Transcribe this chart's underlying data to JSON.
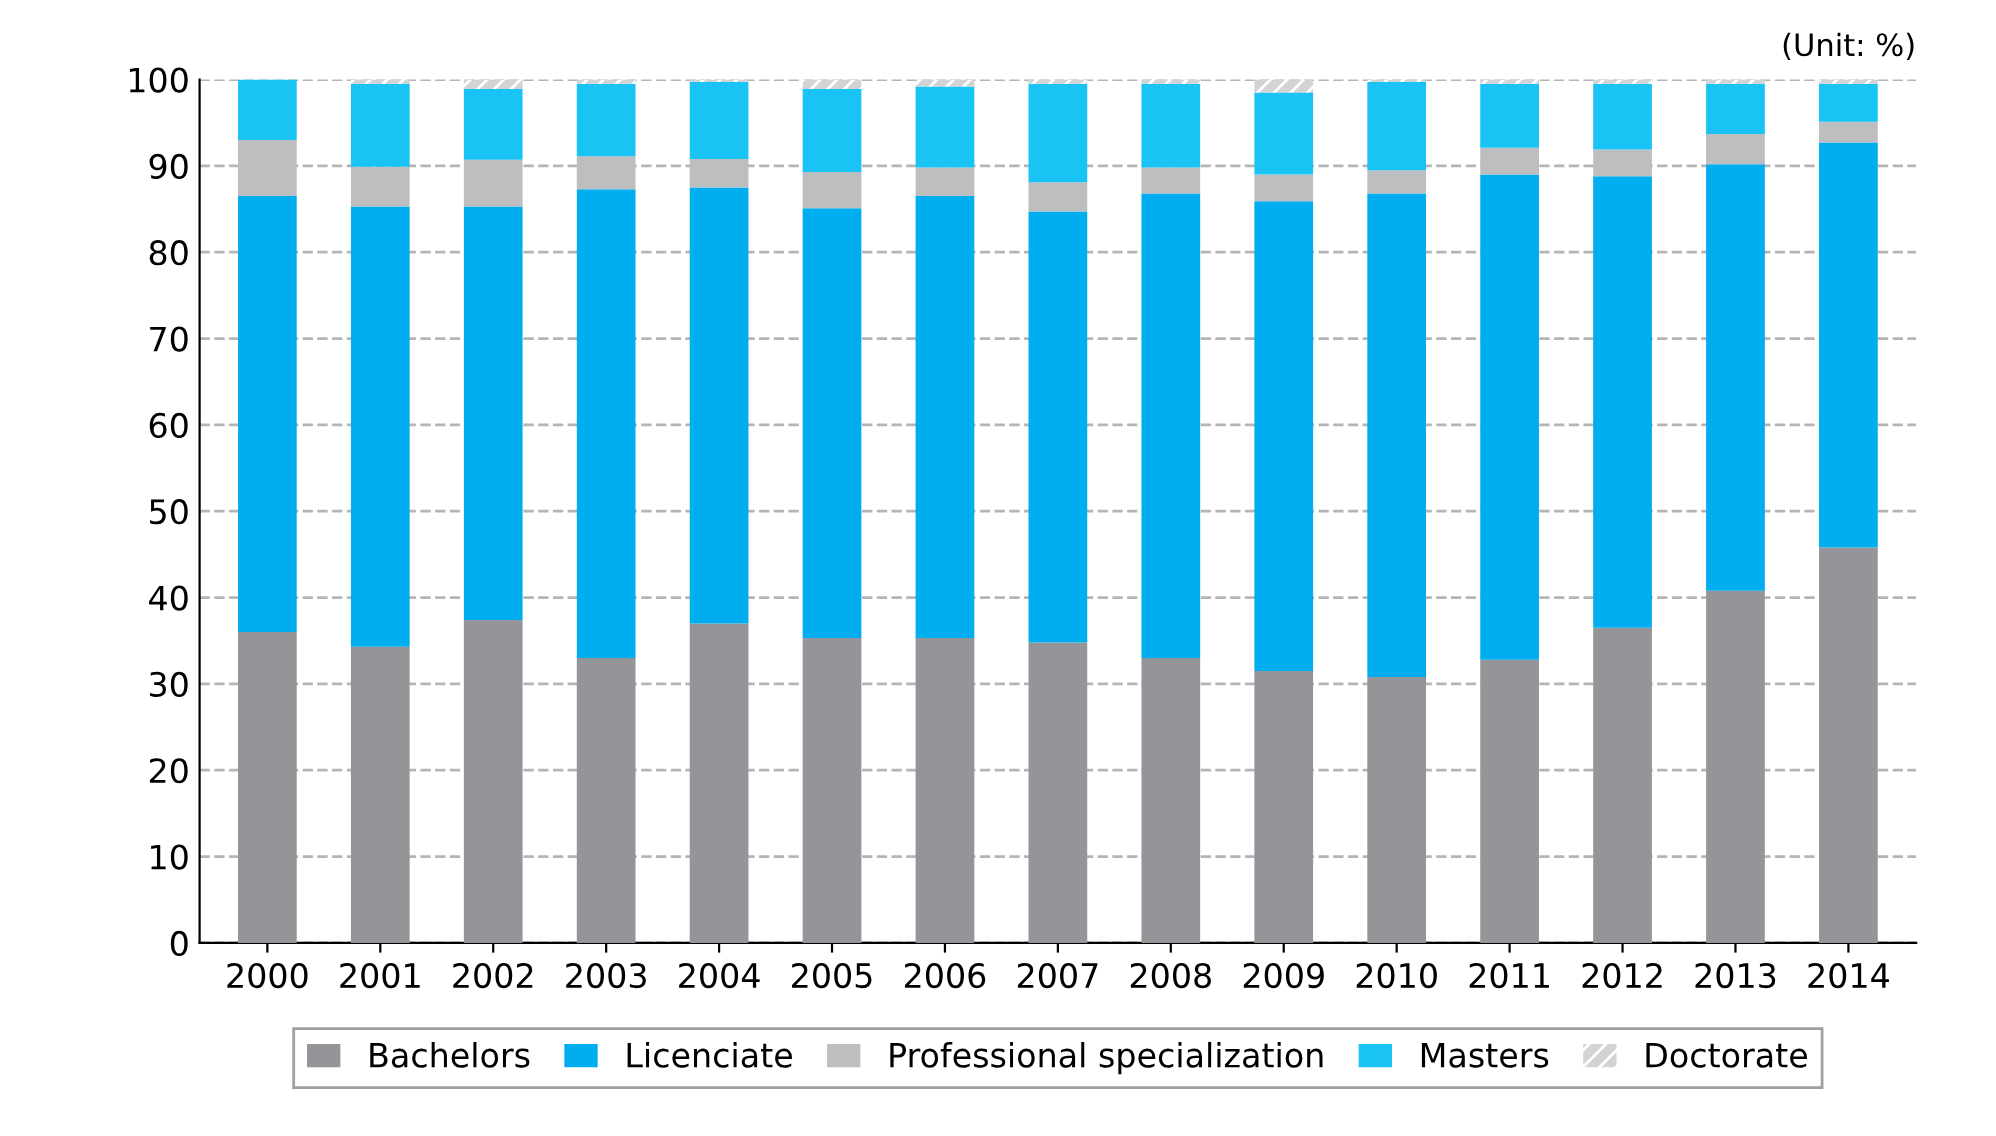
{
  "chart_data": {
    "type": "bar",
    "stacked": true,
    "categories": [
      "2000",
      "2001",
      "2002",
      "2003",
      "2004",
      "2005",
      "2006",
      "2007",
      "2008",
      "2009",
      "2010",
      "2011",
      "2012",
      "2013",
      "2014"
    ],
    "series": [
      {
        "name": "Bachelors",
        "color": "#939598",
        "values": [
          36,
          34.3,
          37.4,
          33,
          37,
          35.3,
          35.3,
          34.8,
          33,
          31.5,
          30.8,
          32.8,
          36.5,
          40.8,
          45.8
        ]
      },
      {
        "name": "Licenciate",
        "color": "#00aeef",
        "values": [
          50.5,
          51,
          47.9,
          54.3,
          50.5,
          49.8,
          51.2,
          49.9,
          53.8,
          54.4,
          56,
          56.2,
          52.3,
          49.4,
          46.9
        ]
      },
      {
        "name": "Professional specialization",
        "color": "#bcbec0",
        "values": [
          6.5,
          4.6,
          5.4,
          3.8,
          3.3,
          4.2,
          3.3,
          3.4,
          3,
          3.1,
          2.7,
          3.1,
          3.1,
          3.5,
          2.4
        ]
      },
      {
        "name": "Masters",
        "color": "#19c3f3",
        "values": [
          7,
          9.6,
          8.2,
          8.4,
          8.9,
          9.6,
          9.4,
          11.4,
          9.7,
          9.5,
          10.2,
          7.4,
          7.6,
          5.8,
          4.4
        ]
      },
      {
        "name": "Doctorate",
        "color": "#d1d3d4",
        "values": [
          0,
          0.5,
          1.1,
          0.5,
          0.3,
          1.1,
          0.8,
          0.5,
          0.5,
          1.5,
          0.3,
          0.5,
          0.5,
          0.5,
          0.5
        ]
      }
    ],
    "ylim": [
      0,
      100
    ],
    "yticks": [
      0,
      10,
      20,
      30,
      40,
      50,
      60,
      70,
      80,
      90,
      100
    ],
    "grid": "y",
    "legend": "bottom",
    "annotations": [
      "(Unit: %)"
    ]
  }
}
